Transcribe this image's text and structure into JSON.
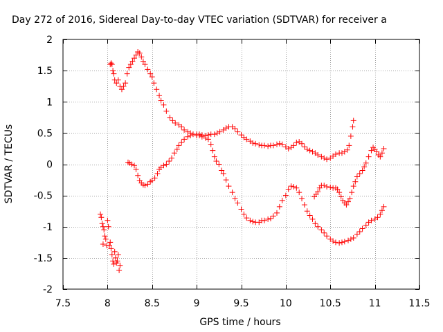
{
  "chart_data": {
    "type": "scatter",
    "title": "Day 272 of 2016, Sidereal Day-to-day VTEC variation (SDTVAR) for receiver a",
    "xlabel": "GPS time / hours",
    "ylabel": "SDTVAR / TECUs",
    "xlim": [
      7.5,
      11.5
    ],
    "ylim": [
      -2,
      2
    ],
    "x_ticks": [
      7.5,
      8,
      8.5,
      9,
      9.5,
      10,
      10.5,
      11,
      11.5
    ],
    "x_tick_labels": [
      "7.5",
      "8",
      "8.5",
      "9",
      "9.5",
      "10",
      "10.5",
      "11",
      "11.5"
    ],
    "y_ticks": [
      -2,
      -1.5,
      -1,
      -0.5,
      0,
      0.5,
      1,
      1.5,
      2
    ],
    "y_tick_labels": [
      "-2",
      "-1.5",
      "-1",
      "-0.5",
      "0",
      "0.5",
      "1",
      "1.5",
      "2"
    ],
    "grid": true,
    "marker": "+",
    "color": "#ff0000",
    "series": [
      {
        "points": [
          [
            7.92,
            -0.8
          ],
          [
            7.93,
            -0.85
          ],
          [
            7.94,
            -0.95
          ],
          [
            7.95,
            -1.0
          ],
          [
            7.95,
            -1.28
          ],
          [
            7.96,
            -1.05
          ],
          [
            7.97,
            -1.15
          ],
          [
            7.98,
            -1.2
          ],
          [
            7.99,
            -1.3
          ],
          [
            8.0,
            -0.9
          ],
          [
            8.01,
            -1.0
          ],
          [
            8.02,
            -1.3
          ],
          [
            8.03,
            -1.25
          ],
          [
            8.04,
            -1.35
          ],
          [
            8.05,
            -1.45
          ],
          [
            8.06,
            -1.55
          ],
          [
            8.07,
            -1.6
          ],
          [
            8.08,
            -1.4
          ],
          [
            8.09,
            -1.5
          ],
          [
            8.1,
            -1.58
          ],
          [
            8.11,
            -1.55
          ],
          [
            8.12,
            -1.45
          ],
          [
            8.13,
            -1.7
          ],
          [
            8.14,
            -1.62
          ]
        ]
      },
      {
        "points": [
          [
            8.03,
            1.6
          ],
          [
            8.04,
            1.62
          ],
          [
            8.05,
            1.6
          ],
          [
            8.06,
            1.5
          ],
          [
            8.07,
            1.45
          ],
          [
            8.08,
            1.35
          ],
          [
            8.1,
            1.3
          ],
          [
            8.12,
            1.35
          ],
          [
            8.14,
            1.25
          ],
          [
            8.16,
            1.2
          ],
          [
            8.18,
            1.25
          ],
          [
            8.2,
            1.3
          ],
          [
            8.22,
            1.45
          ],
          [
            8.24,
            1.55
          ],
          [
            8.26,
            1.6
          ],
          [
            8.28,
            1.65
          ],
          [
            8.3,
            1.7
          ],
          [
            8.32,
            1.75
          ],
          [
            8.34,
            1.8
          ],
          [
            8.36,
            1.78
          ],
          [
            8.38,
            1.72
          ],
          [
            8.4,
            1.65
          ],
          [
            8.42,
            1.6
          ],
          [
            8.45,
            1.52
          ],
          [
            8.48,
            1.45
          ],
          [
            8.5,
            1.4
          ],
          [
            8.52,
            1.3
          ],
          [
            8.55,
            1.2
          ],
          [
            8.58,
            1.1
          ],
          [
            8.6,
            1.02
          ],
          [
            8.63,
            0.95
          ],
          [
            8.66,
            0.85
          ],
          [
            8.7,
            0.75
          ],
          [
            8.73,
            0.7
          ],
          [
            8.76,
            0.66
          ],
          [
            8.8,
            0.63
          ],
          [
            8.83,
            0.6
          ],
          [
            8.86,
            0.55
          ],
          [
            8.9,
            0.52
          ],
          [
            8.93,
            0.5
          ],
          [
            8.96,
            0.48
          ],
          [
            9.0,
            0.46
          ],
          [
            9.03,
            0.46
          ],
          [
            9.06,
            0.44
          ],
          [
            9.1,
            0.42
          ],
          [
            9.13,
            0.4
          ],
          [
            9.16,
            0.32
          ],
          [
            9.18,
            0.22
          ],
          [
            9.2,
            0.12
          ],
          [
            9.22,
            0.05
          ],
          [
            9.25,
            0.0
          ],
          [
            9.28,
            -0.1
          ],
          [
            9.3,
            -0.15
          ],
          [
            9.33,
            -0.25
          ],
          [
            9.36,
            -0.35
          ],
          [
            9.4,
            -0.45
          ],
          [
            9.43,
            -0.55
          ],
          [
            9.46,
            -0.62
          ],
          [
            9.5,
            -0.72
          ],
          [
            9.53,
            -0.8
          ],
          [
            9.56,
            -0.86
          ],
          [
            9.6,
            -0.9
          ],
          [
            9.63,
            -0.92
          ],
          [
            9.66,
            -0.93
          ],
          [
            9.7,
            -0.93
          ],
          [
            9.73,
            -0.9
          ],
          [
            9.76,
            -0.9
          ],
          [
            9.8,
            -0.88
          ],
          [
            9.83,
            -0.87
          ],
          [
            9.86,
            -0.83
          ],
          [
            9.9,
            -0.78
          ],
          [
            9.93,
            -0.68
          ],
          [
            9.96,
            -0.58
          ],
          [
            10.0,
            -0.5
          ],
          [
            10.03,
            -0.4
          ],
          [
            10.06,
            -0.35
          ],
          [
            10.09,
            -0.36
          ],
          [
            10.12,
            -0.38
          ],
          [
            10.15,
            -0.45
          ],
          [
            10.18,
            -0.55
          ],
          [
            10.21,
            -0.65
          ],
          [
            10.24,
            -0.75
          ],
          [
            10.27,
            -0.82
          ],
          [
            10.3,
            -0.88
          ],
          [
            10.33,
            -0.95
          ],
          [
            10.36,
            -1.0
          ],
          [
            10.4,
            -1.05
          ],
          [
            10.43,
            -1.1
          ],
          [
            10.46,
            -1.15
          ],
          [
            10.5,
            -1.2
          ],
          [
            10.53,
            -1.23
          ],
          [
            10.56,
            -1.25
          ],
          [
            10.6,
            -1.26
          ],
          [
            10.63,
            -1.25
          ],
          [
            10.66,
            -1.24
          ],
          [
            10.7,
            -1.22
          ],
          [
            10.73,
            -1.2
          ],
          [
            10.76,
            -1.18
          ],
          [
            10.8,
            -1.12
          ],
          [
            10.83,
            -1.08
          ],
          [
            10.86,
            -1.03
          ],
          [
            10.9,
            -0.98
          ],
          [
            10.93,
            -0.93
          ],
          [
            10.96,
            -0.9
          ],
          [
            11.0,
            -0.88
          ],
          [
            11.03,
            -0.85
          ],
          [
            11.06,
            -0.8
          ],
          [
            11.08,
            -0.74
          ],
          [
            11.1,
            -0.68
          ]
        ]
      },
      {
        "points": [
          [
            8.23,
            0.03
          ],
          [
            8.25,
            0.02
          ],
          [
            8.27,
            0.0
          ],
          [
            8.3,
            -0.02
          ],
          [
            8.32,
            -0.08
          ],
          [
            8.34,
            -0.18
          ],
          [
            8.36,
            -0.26
          ],
          [
            8.38,
            -0.3
          ],
          [
            8.4,
            -0.33
          ],
          [
            8.42,
            -0.34
          ],
          [
            8.45,
            -0.32
          ],
          [
            8.48,
            -0.28
          ],
          [
            8.5,
            -0.26
          ],
          [
            8.53,
            -0.22
          ],
          [
            8.56,
            -0.15
          ],
          [
            8.58,
            -0.08
          ],
          [
            8.6,
            -0.05
          ],
          [
            8.63,
            -0.02
          ],
          [
            8.66,
            0.0
          ],
          [
            8.69,
            0.05
          ],
          [
            8.72,
            0.1
          ],
          [
            8.75,
            0.18
          ],
          [
            8.78,
            0.24
          ],
          [
            8.8,
            0.3
          ],
          [
            8.83,
            0.35
          ],
          [
            8.86,
            0.4
          ],
          [
            8.9,
            0.44
          ],
          [
            8.93,
            0.46
          ],
          [
            8.96,
            0.48
          ],
          [
            9.0,
            0.48
          ],
          [
            9.03,
            0.48
          ],
          [
            9.06,
            0.47
          ],
          [
            9.1,
            0.46
          ],
          [
            9.13,
            0.47
          ],
          [
            9.16,
            0.48
          ],
          [
            9.2,
            0.48
          ],
          [
            9.23,
            0.5
          ],
          [
            9.26,
            0.52
          ],
          [
            9.3,
            0.55
          ],
          [
            9.33,
            0.58
          ],
          [
            9.36,
            0.6
          ],
          [
            9.4,
            0.6
          ],
          [
            9.43,
            0.57
          ],
          [
            9.46,
            0.52
          ],
          [
            9.5,
            0.47
          ],
          [
            9.53,
            0.43
          ],
          [
            9.56,
            0.4
          ],
          [
            9.6,
            0.37
          ],
          [
            9.63,
            0.34
          ],
          [
            9.66,
            0.33
          ],
          [
            9.7,
            0.31
          ],
          [
            9.73,
            0.3
          ],
          [
            9.76,
            0.3
          ],
          [
            9.8,
            0.29
          ],
          [
            9.83,
            0.3
          ],
          [
            9.86,
            0.3
          ],
          [
            9.9,
            0.32
          ],
          [
            9.93,
            0.33
          ],
          [
            9.96,
            0.32
          ],
          [
            10.0,
            0.28
          ],
          [
            10.03,
            0.25
          ],
          [
            10.06,
            0.27
          ],
          [
            10.09,
            0.3
          ],
          [
            10.12,
            0.35
          ],
          [
            10.15,
            0.36
          ],
          [
            10.18,
            0.33
          ],
          [
            10.21,
            0.28
          ],
          [
            10.24,
            0.24
          ],
          [
            10.27,
            0.22
          ],
          [
            10.3,
            0.2
          ],
          [
            10.33,
            0.18
          ],
          [
            10.36,
            0.15
          ],
          [
            10.4,
            0.12
          ],
          [
            10.43,
            0.1
          ],
          [
            10.46,
            0.08
          ],
          [
            10.5,
            0.1
          ],
          [
            10.53,
            0.13
          ],
          [
            10.56,
            0.16
          ],
          [
            10.6,
            0.18
          ],
          [
            10.63,
            0.18
          ],
          [
            10.66,
            0.2
          ],
          [
            10.69,
            0.23
          ],
          [
            10.71,
            0.3
          ],
          [
            10.73,
            0.45
          ],
          [
            10.75,
            0.6
          ],
          [
            10.76,
            0.7
          ]
        ]
      },
      {
        "points": [
          [
            10.32,
            -0.52
          ],
          [
            10.34,
            -0.48
          ],
          [
            10.36,
            -0.44
          ],
          [
            10.38,
            -0.38
          ],
          [
            10.4,
            -0.34
          ],
          [
            10.43,
            -0.34
          ],
          [
            10.46,
            -0.36
          ],
          [
            10.5,
            -0.37
          ],
          [
            10.53,
            -0.38
          ],
          [
            10.56,
            -0.38
          ],
          [
            10.58,
            -0.4
          ],
          [
            10.6,
            -0.45
          ],
          [
            10.62,
            -0.52
          ],
          [
            10.64,
            -0.58
          ],
          [
            10.66,
            -0.62
          ],
          [
            10.68,
            -0.65
          ],
          [
            10.7,
            -0.6
          ],
          [
            10.72,
            -0.55
          ],
          [
            10.74,
            -0.45
          ],
          [
            10.76,
            -0.35
          ],
          [
            10.78,
            -0.28
          ],
          [
            10.8,
            -0.2
          ],
          [
            10.83,
            -0.15
          ],
          [
            10.86,
            -0.1
          ],
          [
            10.88,
            -0.04
          ],
          [
            10.9,
            0.02
          ],
          [
            10.93,
            0.12
          ],
          [
            10.96,
            0.22
          ],
          [
            10.98,
            0.27
          ],
          [
            11.0,
            0.24
          ],
          [
            11.02,
            0.2
          ],
          [
            11.04,
            0.15
          ],
          [
            11.06,
            0.12
          ],
          [
            11.08,
            0.18
          ],
          [
            11.1,
            0.25
          ]
        ]
      }
    ]
  }
}
